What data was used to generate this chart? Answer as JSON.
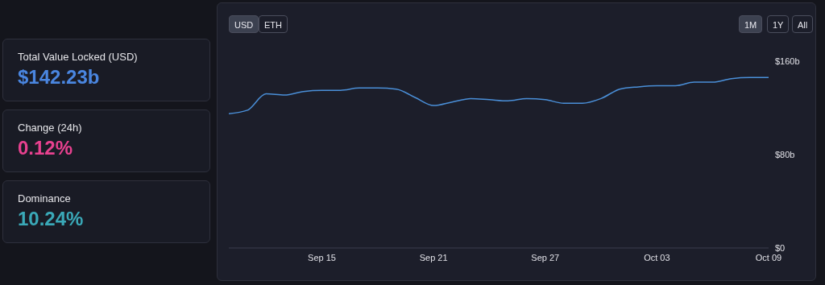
{
  "chart_data": [
    {
      "type": "other",
      "annotations": [
        "Total Value Locked (USD)",
        "$142.23b",
        "Change (24h)",
        "0.12%",
        "Dominance",
        "10.24%"
      ]
    },
    {
      "type": "line",
      "annotations": [
        "USD",
        "ETH",
        "1M",
        "1Y",
        "All"
      ],
      "x": [
        "--09-10",
        "--09-11",
        "--09-12",
        "--09-13",
        "--09-14",
        "--09-15",
        "--09-16",
        "--09-17",
        "--09-18",
        "--09-19",
        "--09-20",
        "--09-21",
        "--09-22",
        "--09-23",
        "--09-24",
        "--09-25",
        "--09-26",
        "--09-27",
        "--09-28",
        "--09-29",
        "--09-30",
        "--10-01",
        "--10-02",
        "--10-03",
        "--10-04",
        "--10-05",
        "--10-06",
        "--10-07",
        "--10-08",
        "--10-09"
      ],
      "series": [
        {
          "color": "#4a8fd8",
          "values": [
            115,
            118,
            132,
            131,
            134,
            135,
            135,
            137,
            137,
            136,
            129,
            122,
            125,
            128,
            127,
            126,
            128,
            127,
            124,
            124,
            128,
            136,
            138,
            139,
            139,
            142,
            142,
            145,
            146,
            146
          ]
        }
      ],
      "xticks": [
        {
          "value": "--09-15",
          "label": "Sep 15"
        },
        {
          "value": "--09-21",
          "label": "Sep 21"
        },
        {
          "value": "--09-27",
          "label": "Sep 27"
        },
        {
          "value": "--10-03",
          "label": "Oct 03"
        },
        {
          "value": "--10-09",
          "label": "Oct 09"
        }
      ],
      "xlim": [
        "--09-10",
        "--10-09"
      ],
      "ylim": [
        0,
        160
      ],
      "yticks": [
        {
          "value": 0,
          "label": "$0"
        },
        {
          "value": 80,
          "label": "$80b"
        },
        {
          "value": 160,
          "label": "$160b"
        }
      ],
      "grid": false,
      "legend": false,
      "marker": "none",
      "line_style": "solid"
    }
  ]
}
